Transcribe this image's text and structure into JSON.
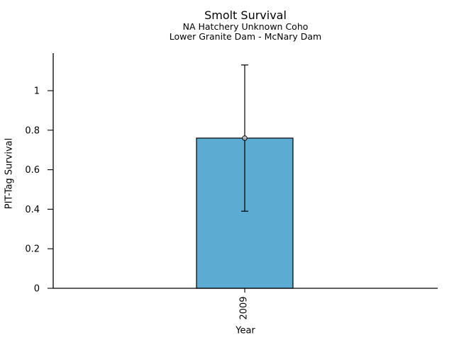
{
  "chart_data": {
    "type": "bar",
    "title": "Smolt Survival",
    "subtitle1": "NA Hatchery Unknown Coho",
    "subtitle2": "Lower Granite Dam - McNary Dam",
    "xlabel": "Year",
    "ylabel": "PIT-Tag Survival",
    "categories": [
      "2009"
    ],
    "values": [
      0.76
    ],
    "error_low": [
      0.39
    ],
    "error_high": [
      1.13
    ],
    "ylim": [
      0,
      1.19
    ],
    "yticks": [
      0,
      0.2,
      0.4,
      0.6,
      0.8,
      1
    ],
    "ytick_labels": [
      "0",
      "0.2",
      "0.4",
      "0.6",
      "0.8",
      "1"
    ],
    "bar_color": "#5CABD2",
    "bar_edge_color": "#000000",
    "error_bar_color": "#000000",
    "marker": "circle-open",
    "grid": false,
    "legend": false
  }
}
